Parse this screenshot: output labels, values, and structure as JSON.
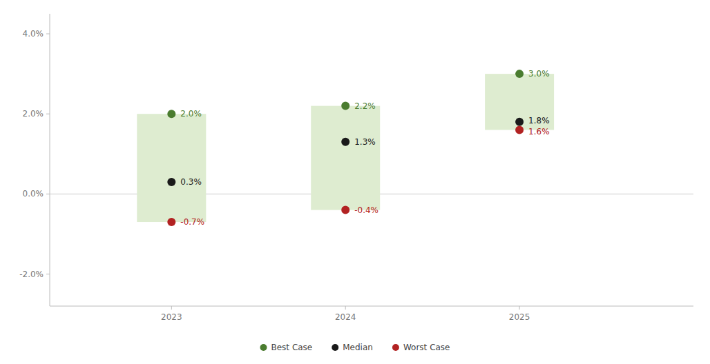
{
  "chart_data": {
    "type": "dot_range",
    "x": [
      2023,
      2024,
      2025
    ],
    "series": [
      {
        "name": "Best Case",
        "color": "#4a7c2f",
        "values": [
          2.0,
          2.2,
          3.0
        ],
        "value_labels": [
          "2.0%",
          "2.2%",
          "3.0%"
        ]
      },
      {
        "name": "Median",
        "color": "#1a1a1a",
        "values": [
          0.3,
          1.3,
          1.8
        ],
        "value_labels": [
          "0.3%",
          "1.3%",
          "1.8%"
        ]
      },
      {
        "name": "Worst Case",
        "color": "#b22222",
        "values": [
          -0.7,
          -0.4,
          1.6
        ],
        "value_labels": [
          "-0.7%",
          "-0.4%",
          "1.6%"
        ]
      }
    ],
    "color": "#deecd0",
    "xlim": [
      2022.3,
      2026.0
    ],
    "xticks": [
      2023,
      2024,
      2025
    ],
    "ylim": [
      -2.8,
      4.5
    ],
    "yticks": [
      {
        "value": -2.0,
        "label": "-2.0%"
      },
      {
        "value": 0.0,
        "label": "0.0%"
      },
      {
        "value": 2.0,
        "label": "2.0%"
      },
      {
        "value": 4.0,
        "label": "4.0%"
      }
    ],
    "grid": false,
    "legend": "bottom",
    "data_labels": true
  }
}
